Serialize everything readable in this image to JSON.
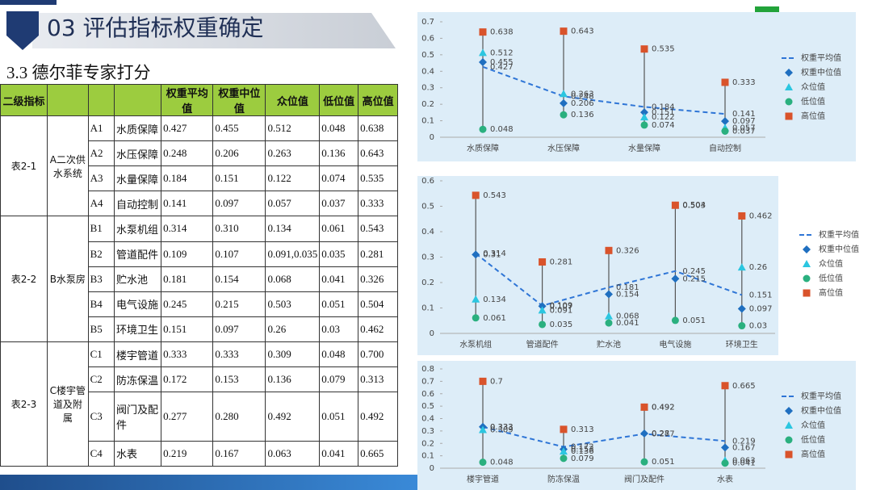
{
  "header": {
    "title": "03 评估指标权重确定",
    "subtitle": "3.3 德尔菲专家打分"
  },
  "table": {
    "header": [
      "二级指标",
      "权重平均值",
      "权重中位值",
      "众位值",
      "低位值",
      "高位值"
    ],
    "groups": [
      {
        "table": "表2-1",
        "name": "A二次供水系统",
        "rows": [
          [
            "A1",
            "水质保障",
            "0.427",
            "0.455",
            "0.512",
            "0.048",
            "0.638"
          ],
          [
            "A2",
            "水压保障",
            "0.248",
            "0.206",
            "0.263",
            "0.136",
            "0.643"
          ],
          [
            "A3",
            "水量保障",
            "0.184",
            "0.151",
            "0.122",
            "0.074",
            "0.535"
          ],
          [
            "A4",
            "自动控制",
            "0.141",
            "0.097",
            "0.057",
            "0.037",
            "0.333"
          ]
        ]
      },
      {
        "table": "表2-2",
        "name": "B水泵房",
        "rows": [
          [
            "B1",
            "水泵机组",
            "0.314",
            "0.310",
            "0.134",
            "0.061",
            "0.543"
          ],
          [
            "B2",
            "管道配件",
            "0.109",
            "0.107",
            "0.091,0.035",
            "0.035",
            "0.281"
          ],
          [
            "B3",
            "贮水池",
            "0.181",
            "0.154",
            "0.068",
            "0.041",
            "0.326"
          ],
          [
            "B4",
            "电气设施",
            "0.245",
            "0.215",
            "0.503",
            "0.051",
            "0.504"
          ],
          [
            "B5",
            "环境卫生",
            "0.151",
            "0.097",
            "0.26",
            "0.03",
            "0.462"
          ]
        ]
      },
      {
        "table": "表2-3",
        "name": "C楼宇管道及附属",
        "rows": [
          [
            "C1",
            "楼宇管道",
            "0.333",
            "0.333",
            "0.309",
            "0.048",
            "0.700"
          ],
          [
            "C2",
            "防冻保温",
            "0.172",
            "0.153",
            "0.136",
            "0.079",
            "0.313"
          ],
          [
            "C3",
            "阀门及配件",
            "0.277",
            "0.280",
            "0.492",
            "0.051",
            "0.492"
          ],
          [
            "C4",
            "水表",
            "0.219",
            "0.167",
            "0.063",
            "0.041",
            "0.665"
          ]
        ]
      }
    ]
  },
  "chart_data": [
    {
      "type": "line",
      "categories": [
        "水质保障",
        "水压保障",
        "水量保障",
        "自动控制"
      ],
      "ylim": [
        0,
        0.7
      ],
      "yticks": [
        0,
        0.1,
        0.2,
        0.3,
        0.4,
        0.5,
        0.6,
        0.7
      ],
      "series": [
        {
          "name": "权重平均值",
          "color": "#2e75d6",
          "marker": "none",
          "linestyle": "dashed",
          "values": [
            0.427,
            0.248,
            0.184,
            0.141
          ]
        },
        {
          "name": "权重中位值",
          "color": "#1f6fc0",
          "marker": "diamond",
          "values": [
            0.455,
            0.206,
            0.151,
            0.097
          ]
        },
        {
          "name": "众位值",
          "color": "#2bc6e0",
          "marker": "triangle",
          "values": [
            0.512,
            0.263,
            0.122,
            0.057
          ]
        },
        {
          "name": "低位值",
          "color": "#2ab07f",
          "marker": "circle",
          "values": [
            0.048,
            0.136,
            0.074,
            0.037
          ]
        },
        {
          "name": "高位值",
          "color": "#d9532b",
          "marker": "square",
          "values": [
            0.638,
            0.643,
            0.535,
            0.333
          ]
        }
      ]
    },
    {
      "type": "line",
      "categories": [
        "水泵机组",
        "管道配件",
        "贮水池",
        "电气设施",
        "环境卫生"
      ],
      "ylim": [
        0,
        0.6
      ],
      "yticks": [
        0,
        0.1,
        0.2,
        0.3,
        0.4,
        0.5,
        0.6
      ],
      "series": [
        {
          "name": "权重平均值",
          "color": "#2e75d6",
          "marker": "none",
          "linestyle": "dashed",
          "values": [
            0.314,
            0.109,
            0.181,
            0.245,
            0.151
          ]
        },
        {
          "name": "权重中位值",
          "color": "#1f6fc0",
          "marker": "diamond",
          "values": [
            0.31,
            0.107,
            0.154,
            0.215,
            0.097
          ]
        },
        {
          "name": "众位值",
          "color": "#2bc6e0",
          "marker": "triangle",
          "values": [
            0.134,
            0.091,
            0.068,
            0.503,
            0.26
          ]
        },
        {
          "name": "低位值",
          "color": "#2ab07f",
          "marker": "circle",
          "values": [
            0.061,
            0.035,
            0.041,
            0.051,
            0.03
          ]
        },
        {
          "name": "高位值",
          "color": "#d9532b",
          "marker": "square",
          "values": [
            0.543,
            0.281,
            0.326,
            0.504,
            0.462
          ]
        }
      ]
    },
    {
      "type": "line",
      "categories": [
        "楼宇管道",
        "防冻保温",
        "阀门及配件",
        "水表"
      ],
      "ylim": [
        0,
        0.8
      ],
      "yticks": [
        0,
        0.1,
        0.2,
        0.3,
        0.4,
        0.5,
        0.6,
        0.7,
        0.8
      ],
      "series": [
        {
          "name": "权重平均值",
          "color": "#2e75d6",
          "marker": "none",
          "linestyle": "dashed",
          "values": [
            0.333,
            0.172,
            0.277,
            0.219
          ]
        },
        {
          "name": "权重中位值",
          "color": "#1f6fc0",
          "marker": "diamond",
          "values": [
            0.333,
            0.153,
            0.28,
            0.167
          ]
        },
        {
          "name": "众位值",
          "color": "#2bc6e0",
          "marker": "triangle",
          "values": [
            0.309,
            0.136,
            0.492,
            0.063
          ]
        },
        {
          "name": "低位值",
          "color": "#2ab07f",
          "marker": "circle",
          "values": [
            0.048,
            0.079,
            0.051,
            0.041
          ]
        },
        {
          "name": "高位值",
          "color": "#d9532b",
          "marker": "square",
          "values": [
            0.7,
            0.313,
            0.492,
            0.665
          ]
        }
      ]
    }
  ]
}
